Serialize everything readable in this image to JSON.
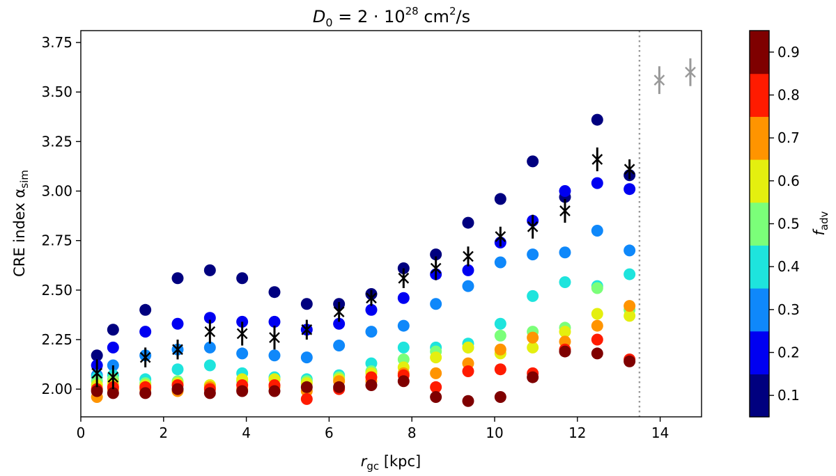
{
  "chart_data": {
    "type": "scatter",
    "title": {
      "main": "D",
      "main_sub": "0",
      "rest": " = 2 · 10",
      "sup": "28",
      "unit": " cm",
      "unit_sup": "2",
      "unit_end": "/s"
    },
    "xlabel": {
      "main": "r",
      "sub": "gc",
      "rest": " [kpc]"
    },
    "ylabel": {
      "main": "CRE index α",
      "sub": "sim"
    },
    "xlim": [
      0,
      15
    ],
    "ylim": [
      1.86,
      3.81
    ],
    "xticks": [
      "0",
      "2",
      "4",
      "6",
      "8",
      "10",
      "12",
      "14"
    ],
    "xtick_values": [
      0,
      2,
      4,
      6,
      8,
      10,
      12,
      14
    ],
    "yticks": [
      "2.00",
      "2.25",
      "2.50",
      "2.75",
      "3.00",
      "3.25",
      "3.50",
      "3.75"
    ],
    "ytick_values": [
      2.0,
      2.25,
      2.5,
      2.75,
      3.0,
      3.25,
      3.5,
      3.75
    ],
    "boundary_x": 13.5,
    "x": [
      0.39,
      0.78,
      1.56,
      2.34,
      3.12,
      3.9,
      4.68,
      5.46,
      6.24,
      7.02,
      7.8,
      8.58,
      9.36,
      10.14,
      10.92,
      11.7,
      12.48,
      13.26
    ],
    "series": [
      {
        "f_adv": 0.1,
        "name": "0.1",
        "values": [
          2.17,
          2.3,
          2.4,
          2.56,
          2.6,
          2.56,
          2.49,
          2.43,
          2.43,
          2.48,
          2.61,
          2.68,
          2.84,
          2.96,
          3.15,
          2.97,
          3.36,
          3.08
        ]
      },
      {
        "f_adv": 0.2,
        "name": "0.2",
        "values": [
          2.12,
          2.21,
          2.29,
          2.33,
          2.36,
          2.34,
          2.34,
          2.3,
          2.33,
          2.4,
          2.46,
          2.58,
          2.6,
          2.74,
          2.85,
          3.0,
          3.04,
          3.01
        ]
      },
      {
        "f_adv": 0.3,
        "name": "0.3",
        "values": [
          2.07,
          2.12,
          2.17,
          2.2,
          2.21,
          2.18,
          2.17,
          2.16,
          2.22,
          2.29,
          2.32,
          2.43,
          2.52,
          2.64,
          2.68,
          2.69,
          2.8,
          2.7
        ]
      },
      {
        "f_adv": 0.4,
        "name": "0.4",
        "values": [
          2.06,
          2.07,
          2.05,
          2.1,
          2.12,
          2.08,
          2.06,
          2.05,
          2.07,
          2.13,
          2.21,
          2.21,
          2.23,
          2.33,
          2.47,
          2.54,
          2.52,
          2.58
        ]
      },
      {
        "f_adv": 0.5,
        "name": "0.5",
        "values": [
          2.04,
          2.05,
          2.03,
          2.04,
          2.02,
          2.04,
          2.05,
          2.04,
          2.06,
          2.09,
          2.15,
          2.19,
          2.21,
          2.27,
          2.29,
          2.31,
          2.51,
          2.4
        ]
      },
      {
        "f_adv": 0.6,
        "name": "0.6",
        "values": [
          2.02,
          2.03,
          2.02,
          2.03,
          2.02,
          2.05,
          2.05,
          2.03,
          2.05,
          2.08,
          2.11,
          2.16,
          2.21,
          2.18,
          2.21,
          2.29,
          2.38,
          2.37
        ]
      },
      {
        "f_adv": 0.7,
        "name": "0.7",
        "values": [
          1.96,
          2.0,
          2.0,
          1.99,
          2.01,
          2.0,
          2.01,
          1.99,
          2.04,
          2.04,
          2.08,
          2.08,
          2.13,
          2.2,
          2.26,
          2.24,
          2.32,
          2.42
        ]
      },
      {
        "f_adv": 0.8,
        "name": "0.8",
        "values": [
          2.0,
          2.01,
          2.01,
          2.02,
          2.0,
          2.02,
          2.02,
          1.95,
          2.0,
          2.06,
          2.07,
          2.01,
          2.09,
          2.1,
          2.08,
          2.2,
          2.25,
          2.15
        ]
      },
      {
        "f_adv": 0.9,
        "name": "0.9",
        "values": [
          1.99,
          1.98,
          1.98,
          2.0,
          1.98,
          1.99,
          1.99,
          2.01,
          2.01,
          2.02,
          2.04,
          1.96,
          1.94,
          1.96,
          2.06,
          2.19,
          2.18,
          2.14
        ]
      }
    ],
    "observed": {
      "x": [
        0.39,
        0.78,
        1.56,
        2.34,
        3.12,
        3.9,
        4.68,
        5.46,
        6.24,
        7.02,
        7.8,
        8.58,
        9.36,
        10.14,
        10.92,
        11.7,
        12.48,
        13.26
      ],
      "values": [
        2.08,
        2.06,
        2.16,
        2.2,
        2.29,
        2.28,
        2.26,
        2.3,
        2.39,
        2.46,
        2.56,
        2.61,
        2.67,
        2.77,
        2.82,
        2.9,
        3.16,
        3.11
      ],
      "errors": [
        0.07,
        0.06,
        0.05,
        0.05,
        0.06,
        0.06,
        0.06,
        0.05,
        0.05,
        0.04,
        0.05,
        0.06,
        0.05,
        0.05,
        0.06,
        0.06,
        0.06,
        0.05
      ],
      "color": "#000000"
    },
    "beyond": {
      "x": [
        13.98,
        14.73
      ],
      "values": [
        3.56,
        3.6
      ],
      "errors": [
        0.07,
        0.07
      ],
      "color": "#999999"
    },
    "colorbar": {
      "label_main": "f",
      "label_sub": "adv",
      "range": [
        0.05,
        0.95
      ],
      "ticks": [
        "0.1",
        "0.2",
        "0.3",
        "0.4",
        "0.5",
        "0.6",
        "0.7",
        "0.8",
        "0.9"
      ],
      "tick_values": [
        0.1,
        0.2,
        0.3,
        0.4,
        0.5,
        0.6,
        0.7,
        0.8,
        0.9
      ],
      "colors": [
        "#00007f",
        "#0000f1",
        "#0f88fa",
        "#1ee4dd",
        "#7bff79",
        "#e4ef0f",
        "#ff9400",
        "#ff1b00",
        "#7f0000"
      ]
    }
  }
}
